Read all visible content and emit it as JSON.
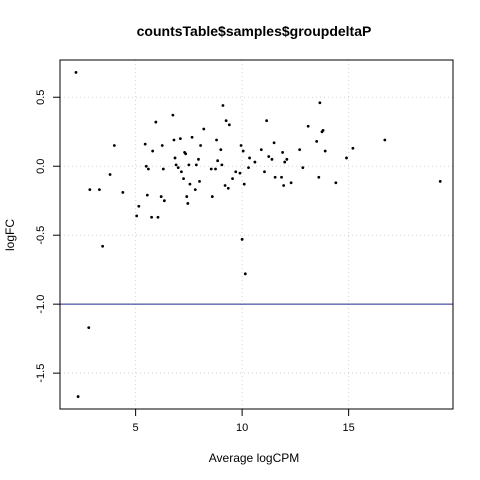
{
  "chart_data": {
    "type": "scatter",
    "title": "countsTable$samples$groupdeltaP",
    "xlabel": "Average logCPM",
    "ylabel": "logFC",
    "xlim": [
      1.45,
      19.9
    ],
    "ylim": [
      -1.76,
      0.77
    ],
    "xticks": [
      5,
      10,
      15
    ],
    "yticks": [
      -1.5,
      -1.0,
      -0.5,
      0.0,
      0.5
    ],
    "ytick_labels": [
      "-1.5",
      "-1.0",
      "-0.5",
      "0.0",
      "0.5"
    ],
    "grid": true,
    "point_color": "#000000",
    "hline": {
      "y": -1.0,
      "color": "#1c2a8c"
    },
    "points": [
      [
        2.2,
        0.68
      ],
      [
        2.3,
        -1.67
      ],
      [
        2.8,
        -1.17
      ],
      [
        2.85,
        -0.17
      ],
      [
        3.3,
        -0.17
      ],
      [
        3.45,
        -0.58
      ],
      [
        3.8,
        -0.06
      ],
      [
        4.0,
        0.15
      ],
      [
        4.4,
        -0.19
      ],
      [
        5.05,
        -0.36
      ],
      [
        5.15,
        -0.29
      ],
      [
        5.45,
        0.16
      ],
      [
        5.5,
        0.0
      ],
      [
        5.55,
        -0.21
      ],
      [
        5.6,
        -0.02
      ],
      [
        5.75,
        -0.37
      ],
      [
        5.8,
        0.11
      ],
      [
        5.95,
        0.32
      ],
      [
        6.05,
        -0.37
      ],
      [
        6.2,
        -0.22
      ],
      [
        6.25,
        0.15
      ],
      [
        6.3,
        -0.02
      ],
      [
        6.35,
        -0.25
      ],
      [
        6.75,
        0.37
      ],
      [
        6.8,
        0.19
      ],
      [
        6.85,
        0.06
      ],
      [
        6.9,
        0.01
      ],
      [
        7.0,
        -0.01
      ],
      [
        7.1,
        0.2
      ],
      [
        7.15,
        -0.04
      ],
      [
        7.25,
        -0.09
      ],
      [
        7.3,
        0.1
      ],
      [
        7.35,
        0.09
      ],
      [
        7.4,
        -0.22
      ],
      [
        7.45,
        -0.27
      ],
      [
        7.5,
        0.01
      ],
      [
        7.55,
        -0.13
      ],
      [
        7.65,
        0.21
      ],
      [
        7.8,
        -0.17
      ],
      [
        7.85,
        0.01
      ],
      [
        7.95,
        0.05
      ],
      [
        8.0,
        -0.11
      ],
      [
        8.05,
        0.15
      ],
      [
        8.2,
        0.27
      ],
      [
        8.55,
        -0.02
      ],
      [
        8.6,
        -0.22
      ],
      [
        8.75,
        -0.02
      ],
      [
        8.8,
        0.19
      ],
      [
        8.85,
        0.04
      ],
      [
        9.0,
        0.12
      ],
      [
        9.05,
        0.01
      ],
      [
        9.1,
        0.44
      ],
      [
        9.2,
        -0.14
      ],
      [
        9.25,
        0.33
      ],
      [
        9.35,
        -0.16
      ],
      [
        9.4,
        0.3
      ],
      [
        9.55,
        -0.09
      ],
      [
        9.7,
        -0.04
      ],
      [
        9.9,
        -0.05
      ],
      [
        9.95,
        0.15
      ],
      [
        10.0,
        -0.53
      ],
      [
        10.05,
        0.11
      ],
      [
        10.1,
        -0.13
      ],
      [
        10.15,
        -0.78
      ],
      [
        10.3,
        -0.01
      ],
      [
        10.35,
        0.06
      ],
      [
        10.6,
        0.03
      ],
      [
        10.9,
        0.12
      ],
      [
        11.05,
        -0.04
      ],
      [
        11.15,
        0.33
      ],
      [
        11.25,
        0.07
      ],
      [
        11.4,
        0.05
      ],
      [
        11.5,
        0.17
      ],
      [
        11.55,
        -0.08
      ],
      [
        11.85,
        -0.08
      ],
      [
        11.9,
        0.1
      ],
      [
        11.95,
        -0.14
      ],
      [
        12.0,
        0.03
      ],
      [
        12.1,
        0.05
      ],
      [
        12.3,
        -0.12
      ],
      [
        12.7,
        0.12
      ],
      [
        12.85,
        -0.01
      ],
      [
        13.1,
        0.29
      ],
      [
        13.5,
        0.18
      ],
      [
        13.6,
        -0.08
      ],
      [
        13.65,
        0.46
      ],
      [
        13.75,
        0.25
      ],
      [
        13.8,
        0.26
      ],
      [
        13.9,
        0.11
      ],
      [
        14.4,
        -0.12
      ],
      [
        14.9,
        0.06
      ],
      [
        15.2,
        0.13
      ],
      [
        16.7,
        0.19
      ],
      [
        19.3,
        -0.11
      ]
    ]
  }
}
